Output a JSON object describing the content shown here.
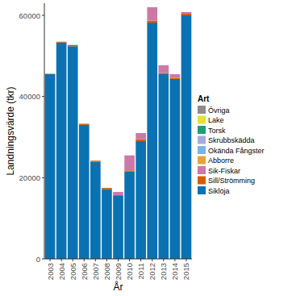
{
  "chart_data": {
    "type": "bar",
    "stacked": true,
    "x_label": "År",
    "y_label": "Landningsvärde (tkr)",
    "legend_title": "Art",
    "legend": "right",
    "categories": [
      "2003",
      "2004",
      "2005",
      "2006",
      "2007",
      "2008",
      "2009",
      "2010",
      "2011",
      "2012",
      "2013",
      "2014",
      "2015"
    ],
    "ylim": [
      0,
      63000
    ],
    "yticks": [
      0,
      20000,
      40000,
      60000
    ],
    "series": [
      {
        "name": "Övriga",
        "color": "#8c8c8c",
        "values": [
          0,
          0,
          0,
          0,
          0,
          0,
          0,
          0,
          0,
          0,
          0,
          0,
          0
        ]
      },
      {
        "name": "Lake",
        "color": "#e3e336",
        "values": [
          0,
          0,
          0,
          0,
          0,
          0,
          0,
          0,
          0,
          0,
          0,
          0,
          0
        ]
      },
      {
        "name": "Torsk",
        "color": "#1e9e74",
        "values": [
          0,
          0,
          0,
          0,
          0,
          0,
          0,
          0,
          0,
          0,
          0,
          0,
          0
        ]
      },
      {
        "name": "Skrubbskädda",
        "color": "#a9a9e0",
        "values": [
          0,
          0,
          0,
          0,
          0,
          0,
          0,
          0,
          0,
          0,
          0,
          0,
          0
        ]
      },
      {
        "name": "Okända Fångster",
        "color": "#7fb2e5",
        "values": [
          0,
          0,
          0,
          0,
          0,
          0,
          0,
          0,
          0,
          0,
          0,
          0,
          0
        ]
      },
      {
        "name": "Abborre",
        "color": "#e8a33c",
        "values": [
          0,
          0,
          0,
          0,
          0,
          0,
          0,
          0,
          0,
          0,
          0,
          0,
          0
        ]
      },
      {
        "name": "Sik-Fiskar",
        "color": "#cc79a7",
        "values": [
          0,
          0,
          0,
          0,
          0,
          0,
          800,
          3700,
          1500,
          3300,
          1900,
          900,
          400
        ]
      },
      {
        "name": "Sill/Strömming",
        "color": "#d55e00",
        "values": [
          100,
          200,
          300,
          300,
          300,
          300,
          200,
          300,
          500,
          500,
          300,
          300,
          400
        ]
      },
      {
        "name": "Siklöja",
        "color": "#0a72b2",
        "values": [
          45500,
          53300,
          52400,
          33000,
          23900,
          17200,
          15500,
          21500,
          29000,
          58200,
          45500,
          44300,
          60000
        ]
      }
    ]
  }
}
